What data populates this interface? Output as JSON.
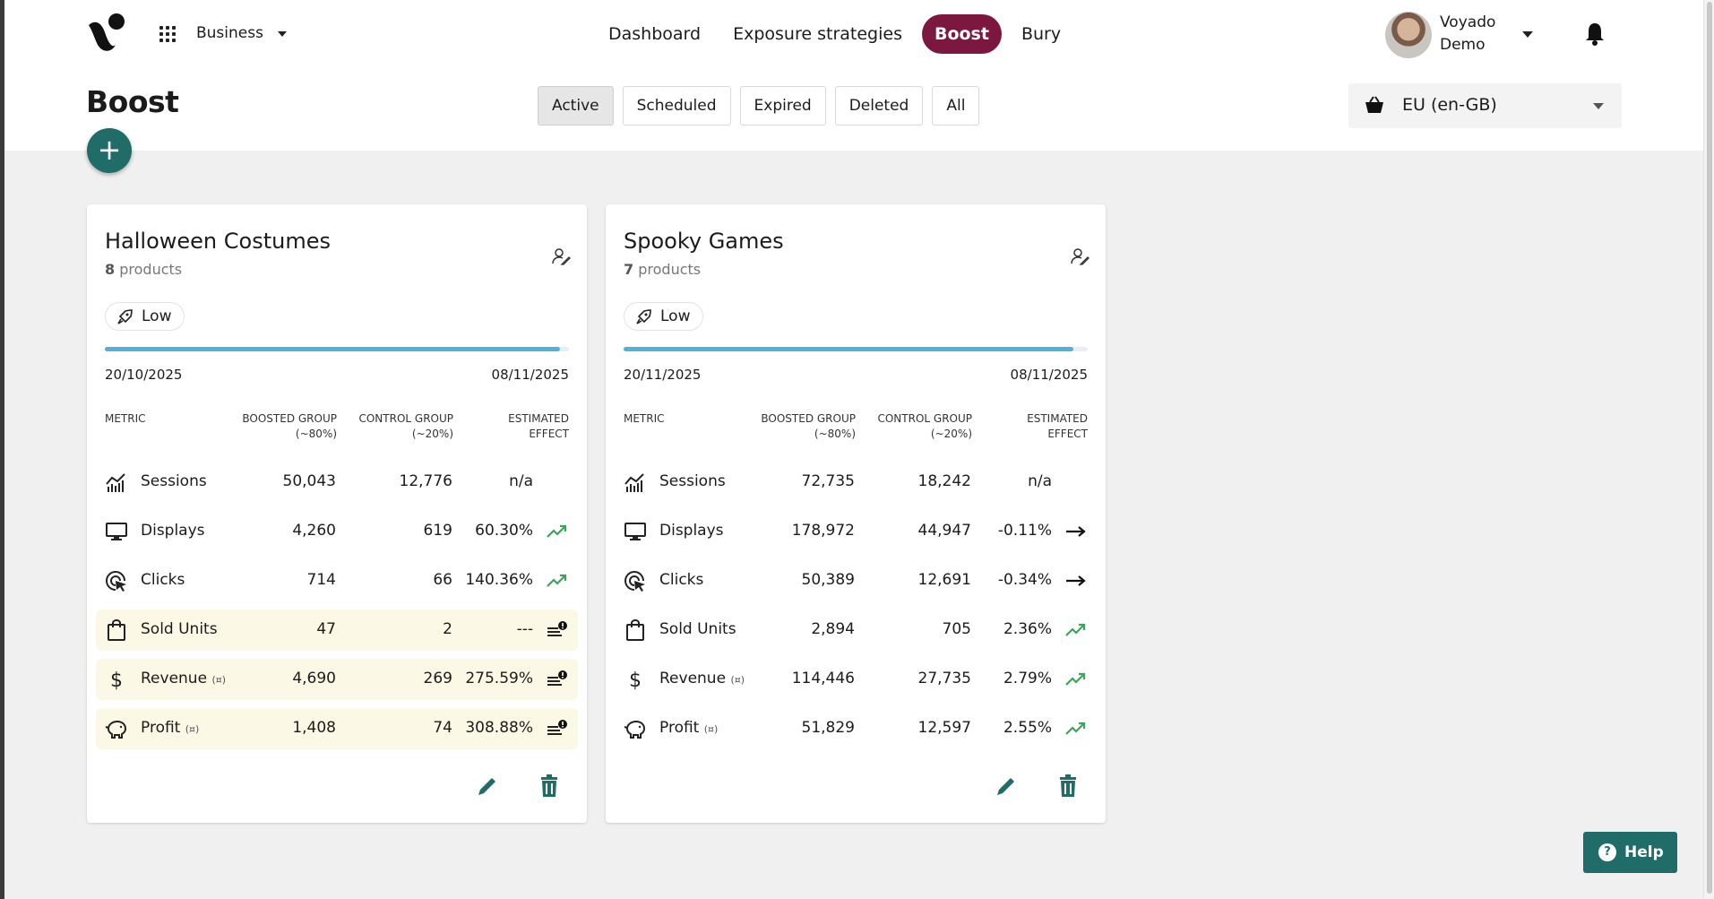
{
  "header": {
    "workspace": "Business",
    "nav": [
      {
        "label": "Dashboard",
        "active": false
      },
      {
        "label": "Exposure strategies",
        "active": false
      },
      {
        "label": "Boost",
        "active": true
      },
      {
        "label": "Bury",
        "active": false
      }
    ],
    "user": {
      "name": "Voyado",
      "org": "Demo"
    }
  },
  "page": {
    "title": "Boost",
    "add_icon": "plus-icon",
    "filters": [
      {
        "label": "Active",
        "active": true
      },
      {
        "label": "Scheduled",
        "active": false
      },
      {
        "label": "Expired",
        "active": false
      },
      {
        "label": "Deleted",
        "active": false
      },
      {
        "label": "All",
        "active": false
      }
    ],
    "region": "EU (en-GB)"
  },
  "columns": {
    "metric": "METRIC",
    "boosted_1": "BOOSTED GROUP",
    "boosted_2": "(~80%)",
    "control_1": "CONTROL GROUP",
    "control_2": "(~20%)",
    "effect_1": "ESTIMATED",
    "effect_2": "EFFECT"
  },
  "cards": [
    {
      "title": "Halloween Costumes",
      "count": "8",
      "count_label": "products",
      "level": "Low",
      "progress": 0.98,
      "start": "20/10/2025",
      "end": "08/11/2025",
      "metrics": [
        {
          "name": "Sessions",
          "suffix": "",
          "icon": "sessions-icon",
          "boosted": "50,043",
          "control": "12,776",
          "effect": "n/a",
          "trend": "none",
          "warn": false
        },
        {
          "name": "Displays",
          "suffix": "",
          "icon": "monitor-icon",
          "boosted": "4,260",
          "control": "619",
          "effect": "60.30%",
          "trend": "up",
          "warn": false
        },
        {
          "name": "Clicks",
          "suffix": "",
          "icon": "click-icon",
          "boosted": "714",
          "control": "66",
          "effect": "140.36%",
          "trend": "up",
          "warn": false
        },
        {
          "name": "Sold Units",
          "suffix": "",
          "icon": "bag-icon",
          "boosted": "47",
          "control": "2",
          "effect": "---",
          "trend": "warning",
          "warn": true
        },
        {
          "name": "Revenue",
          "suffix": "(¤)",
          "icon": "dollar-icon",
          "boosted": "4,690",
          "control": "269",
          "effect": "275.59%",
          "trend": "warning",
          "warn": true
        },
        {
          "name": "Profit",
          "suffix": "(¤)",
          "icon": "piggy-bank-icon",
          "boosted": "1,408",
          "control": "74",
          "effect": "308.88%",
          "trend": "warning",
          "warn": true
        }
      ]
    },
    {
      "title": "Spooky Games",
      "count": "7",
      "count_label": "products",
      "level": "Low",
      "progress": 0.97,
      "start": "20/11/2025",
      "end": "08/11/2025",
      "metrics": [
        {
          "name": "Sessions",
          "suffix": "",
          "icon": "sessions-icon",
          "boosted": "72,735",
          "control": "18,242",
          "effect": "n/a",
          "trend": "none",
          "warn": false
        },
        {
          "name": "Displays",
          "suffix": "",
          "icon": "monitor-icon",
          "boosted": "178,972",
          "control": "44,947",
          "effect": "-0.11%",
          "trend": "flat",
          "warn": false
        },
        {
          "name": "Clicks",
          "suffix": "",
          "icon": "click-icon",
          "boosted": "50,389",
          "control": "12,691",
          "effect": "-0.34%",
          "trend": "flat",
          "warn": false
        },
        {
          "name": "Sold Units",
          "suffix": "",
          "icon": "bag-icon",
          "boosted": "2,894",
          "control": "705",
          "effect": "2.36%",
          "trend": "up",
          "warn": false
        },
        {
          "name": "Revenue",
          "suffix": "(¤)",
          "icon": "dollar-icon",
          "boosted": "114,446",
          "control": "27,735",
          "effect": "2.79%",
          "trend": "up",
          "warn": false
        },
        {
          "name": "Profit",
          "suffix": "(¤)",
          "icon": "piggy-bank-icon",
          "boosted": "51,829",
          "control": "12,597",
          "effect": "2.55%",
          "trend": "up",
          "warn": false
        }
      ]
    }
  ],
  "help": {
    "label": "Help",
    "icon": "question-icon"
  },
  "colors": {
    "accent": "#7c1740",
    "primary": "#1f6c68",
    "progress": "#4fb3d9",
    "trend_up": "#3aa45b",
    "warn_bg": "#fbf8e6"
  }
}
